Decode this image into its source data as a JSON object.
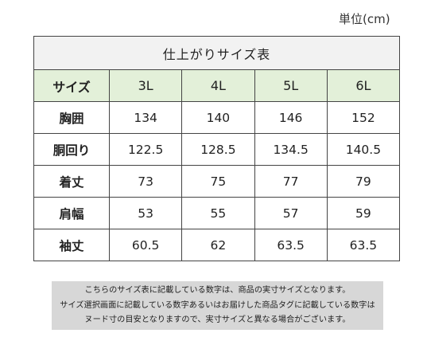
{
  "unit_label": "単位(cm)",
  "table": {
    "title": "仕上がりサイズ表",
    "header": {
      "label": "サイズ",
      "sizes": [
        "3L",
        "4L",
        "5L",
        "6L"
      ]
    },
    "rows": [
      {
        "label": "胸囲",
        "values": [
          "134",
          "140",
          "146",
          "152"
        ]
      },
      {
        "label": "胴回り",
        "values": [
          "122.5",
          "128.5",
          "134.5",
          "140.5"
        ]
      },
      {
        "label": "着丈",
        "values": [
          "73",
          "75",
          "77",
          "79"
        ]
      },
      {
        "label": "肩幅",
        "values": [
          "53",
          "55",
          "57",
          "59"
        ]
      },
      {
        "label": "袖丈",
        "values": [
          "60.5",
          "62",
          "63.5",
          "63.5"
        ]
      }
    ]
  },
  "note": {
    "lines": [
      "こちらのサイズ表に記載している数字は、商品の実寸サイズとなります。",
      "サイズ選択画面に記載している数字あるいはお届けした商品タグに記載している数字は",
      "ヌード寸の目安となりますので、実寸サイズと異なる場合がございます。"
    ]
  },
  "colors": {
    "header_row_bg": "#e3f0d9",
    "title_bg": "#f2f2f2",
    "note_bg": "#d7d7d7",
    "border": "#444444"
  }
}
